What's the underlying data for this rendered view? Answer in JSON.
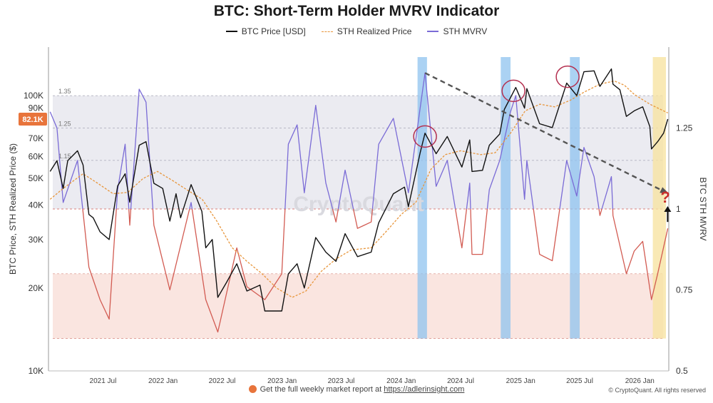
{
  "chart_data": {
    "type": "line",
    "title": "BTC: Short-Term Holder MVRV Indicator",
    "ylabel_left": "BTC Price, STH Realized Price ($)",
    "ylabel_right": "BTC STH MVRV",
    "y_scale_left": "log",
    "ylim_left": [
      10000,
      150000
    ],
    "ylim_right": [
      0.5,
      1.5
    ],
    "left_ticks": [
      {
        "value": 10000,
        "label": "10K"
      },
      {
        "value": 20000,
        "label": "20K"
      },
      {
        "value": 30000,
        "label": "30K"
      },
      {
        "value": 40000,
        "label": "40K"
      },
      {
        "value": 50000,
        "label": "50K"
      },
      {
        "value": 60000,
        "label": "60K"
      },
      {
        "value": 70000,
        "label": "70K"
      },
      {
        "value": 90000,
        "label": "90K"
      },
      {
        "value": 100000,
        "label": "100K"
      }
    ],
    "right_ticks": [
      {
        "value": 0.5,
        "label": "0.5"
      },
      {
        "value": 0.75,
        "label": "0.75"
      },
      {
        "value": 1.0,
        "label": "1"
      },
      {
        "value": 1.25,
        "label": "1.25"
      }
    ],
    "x_ticks": [
      {
        "date": "2021-07-01",
        "label": "2021 Jul"
      },
      {
        "date": "2022-01-01",
        "label": "2022 Jan"
      },
      {
        "date": "2022-07-01",
        "label": "2022 Jul"
      },
      {
        "date": "2023-01-01",
        "label": "2023 Jan"
      },
      {
        "date": "2023-07-01",
        "label": "2023 Jul"
      },
      {
        "date": "2024-01-01",
        "label": "2024 Jan"
      },
      {
        "date": "2024-07-01",
        "label": "2024 Jul"
      },
      {
        "date": "2025-01-01",
        "label": "2025 Jan"
      },
      {
        "date": "2025-07-01",
        "label": "2025 Jul"
      },
      {
        "date": "2026-01-01",
        "label": "2026 Jan"
      }
    ],
    "xlim": [
      "2021-01-15",
      "2026-03-31"
    ],
    "band_levels": [
      {
        "value": 1.35,
        "label": "1.35"
      },
      {
        "value": 1.25,
        "label": "1.25"
      },
      {
        "value": 1.15,
        "label": "1.15"
      }
    ],
    "current_price_label": "82.1K",
    "watermark": "CryptoQuant",
    "series": [
      {
        "name": "BTC Price [USD]",
        "color": "#111111",
        "points": [
          [
            "2021-01-20",
            53000
          ],
          [
            "2021-02-10",
            58000
          ],
          [
            "2021-03-01",
            46000
          ],
          [
            "2021-03-15",
            58000
          ],
          [
            "2021-04-14",
            63000
          ],
          [
            "2021-05-01",
            56000
          ],
          [
            "2021-05-19",
            37000
          ],
          [
            "2021-06-01",
            36000
          ],
          [
            "2021-06-22",
            32000
          ],
          [
            "2021-07-20",
            30000
          ],
          [
            "2021-08-15",
            47000
          ],
          [
            "2021-09-07",
            52000
          ],
          [
            "2021-09-21",
            41000
          ],
          [
            "2021-10-20",
            66000
          ],
          [
            "2021-11-10",
            68000
          ],
          [
            "2021-12-04",
            48000
          ],
          [
            "2021-12-31",
            46000
          ],
          [
            "2022-01-22",
            35000
          ],
          [
            "2022-02-10",
            44000
          ],
          [
            "2022-02-24",
            36000
          ],
          [
            "2022-03-28",
            47500
          ],
          [
            "2022-04-30",
            38000
          ],
          [
            "2022-05-12",
            28000
          ],
          [
            "2022-06-01",
            30000
          ],
          [
            "2022-06-18",
            18500
          ],
          [
            "2022-07-15",
            21000
          ],
          [
            "2022-08-15",
            24500
          ],
          [
            "2022-09-15",
            19500
          ],
          [
            "2022-10-25",
            20500
          ],
          [
            "2022-11-09",
            16500
          ],
          [
            "2022-12-31",
            16500
          ],
          [
            "2023-01-20",
            22500
          ],
          [
            "2023-02-16",
            24500
          ],
          [
            "2023-03-10",
            20000
          ],
          [
            "2023-04-14",
            30500
          ],
          [
            "2023-05-15",
            27000
          ],
          [
            "2023-06-15",
            25000
          ],
          [
            "2023-07-13",
            31500
          ],
          [
            "2023-08-20",
            26000
          ],
          [
            "2023-10-01",
            27000
          ],
          [
            "2023-10-24",
            34500
          ],
          [
            "2023-12-08",
            44000
          ],
          [
            "2024-01-11",
            46500
          ],
          [
            "2024-01-23",
            39500
          ],
          [
            "2024-02-28",
            62000
          ],
          [
            "2024-03-14",
            73000
          ],
          [
            "2024-04-17",
            61500
          ],
          [
            "2024-05-21",
            71000
          ],
          [
            "2024-07-05",
            55000
          ],
          [
            "2024-07-29",
            69000
          ],
          [
            "2024-08-05",
            53000
          ],
          [
            "2024-09-06",
            53500
          ],
          [
            "2024-09-27",
            66000
          ],
          [
            "2024-10-29",
            72500
          ],
          [
            "2024-11-12",
            89000
          ],
          [
            "2024-12-17",
            107000
          ],
          [
            "2025-01-13",
            90000
          ],
          [
            "2025-01-20",
            106000
          ],
          [
            "2025-02-28",
            79000
          ],
          [
            "2025-04-08",
            76500
          ],
          [
            "2025-05-22",
            111000
          ],
          [
            "2025-06-22",
            100000
          ],
          [
            "2025-07-14",
            122000
          ],
          [
            "2025-08-14",
            123000
          ],
          [
            "2025-09-01",
            108000
          ],
          [
            "2025-10-06",
            125000
          ],
          [
            "2025-10-11",
            110000
          ],
          [
            "2025-11-01",
            105000
          ],
          [
            "2025-11-21",
            84000
          ],
          [
            "2025-12-15",
            88000
          ],
          [
            "2026-01-10",
            91000
          ],
          [
            "2026-02-01",
            77000
          ],
          [
            "2026-02-06",
            64000
          ],
          [
            "2026-02-25",
            68000
          ],
          [
            "2026-03-15",
            73000
          ],
          [
            "2026-03-28",
            82100
          ]
        ]
      },
      {
        "name": "STH Realized Price",
        "color": "#e8963c",
        "dashed": true,
        "points": [
          [
            "2021-01-20",
            42000
          ],
          [
            "2021-03-01",
            46000
          ],
          [
            "2021-05-01",
            52000
          ],
          [
            "2021-06-15",
            48000
          ],
          [
            "2021-08-01",
            44000
          ],
          [
            "2021-09-15",
            44500
          ],
          [
            "2021-11-01",
            50000
          ],
          [
            "2021-12-15",
            53000
          ],
          [
            "2022-02-01",
            49000
          ],
          [
            "2022-03-15",
            45500
          ],
          [
            "2022-05-01",
            42000
          ],
          [
            "2022-06-15",
            35000
          ],
          [
            "2022-08-01",
            28000
          ],
          [
            "2022-09-15",
            25000
          ],
          [
            "2022-11-01",
            22500
          ],
          [
            "2022-12-15",
            20000
          ],
          [
            "2023-02-01",
            18500
          ],
          [
            "2023-03-15",
            19500
          ],
          [
            "2023-05-01",
            23000
          ],
          [
            "2023-06-15",
            25500
          ],
          [
            "2023-08-01",
            27500
          ],
          [
            "2023-10-01",
            28000
          ],
          [
            "2023-11-15",
            32000
          ],
          [
            "2024-01-01",
            37000
          ],
          [
            "2024-02-15",
            41000
          ],
          [
            "2024-04-01",
            54000
          ],
          [
            "2024-05-15",
            61000
          ],
          [
            "2024-07-01",
            63000
          ],
          [
            "2024-09-01",
            61000
          ],
          [
            "2024-10-15",
            62000
          ],
          [
            "2024-12-01",
            73000
          ],
          [
            "2025-01-15",
            88000
          ],
          [
            "2025-03-01",
            93000
          ],
          [
            "2025-04-15",
            91000
          ],
          [
            "2025-06-01",
            96000
          ],
          [
            "2025-07-15",
            103000
          ],
          [
            "2025-09-01",
            110000
          ],
          [
            "2025-10-15",
            113000
          ],
          [
            "2025-11-15",
            109000
          ],
          [
            "2025-12-15",
            101000
          ],
          [
            "2026-02-01",
            93000
          ],
          [
            "2026-03-28",
            86500
          ]
        ]
      },
      {
        "name": "STH MVRV",
        "color": "#7a6bd6",
        "color_below_one": "#d25b52",
        "points": [
          [
            "2021-01-20",
            1.3
          ],
          [
            "2021-02-10",
            1.25
          ],
          [
            "2021-03-01",
            1.02
          ],
          [
            "2021-04-14",
            1.15
          ],
          [
            "2021-05-19",
            0.82
          ],
          [
            "2021-06-22",
            0.72
          ],
          [
            "2021-07-20",
            0.66
          ],
          [
            "2021-08-15",
            1.06
          ],
          [
            "2021-09-07",
            1.2
          ],
          [
            "2021-09-21",
            0.95
          ],
          [
            "2021-10-20",
            1.37
          ],
          [
            "2021-11-10",
            1.33
          ],
          [
            "2021-12-04",
            0.95
          ],
          [
            "2022-01-22",
            0.75
          ],
          [
            "2022-03-28",
            1.02
          ],
          [
            "2022-05-12",
            0.72
          ],
          [
            "2022-06-18",
            0.62
          ],
          [
            "2022-08-15",
            0.88
          ],
          [
            "2022-09-15",
            0.76
          ],
          [
            "2022-11-09",
            0.72
          ],
          [
            "2022-12-31",
            0.8
          ],
          [
            "2023-01-20",
            1.2
          ],
          [
            "2023-02-16",
            1.26
          ],
          [
            "2023-03-10",
            1.05
          ],
          [
            "2023-04-14",
            1.32
          ],
          [
            "2023-05-15",
            1.08
          ],
          [
            "2023-06-15",
            0.96
          ],
          [
            "2023-07-13",
            1.12
          ],
          [
            "2023-08-20",
            0.94
          ],
          [
            "2023-10-01",
            0.96
          ],
          [
            "2023-10-24",
            1.2
          ],
          [
            "2023-12-08",
            1.28
          ],
          [
            "2024-01-23",
            1.05
          ],
          [
            "2024-03-14",
            1.42
          ],
          [
            "2024-04-17",
            1.07
          ],
          [
            "2024-05-21",
            1.15
          ],
          [
            "2024-07-05",
            0.88
          ],
          [
            "2024-07-29",
            1.08
          ],
          [
            "2024-08-05",
            0.86
          ],
          [
            "2024-09-06",
            0.86
          ],
          [
            "2024-09-27",
            1.06
          ],
          [
            "2024-10-29",
            1.15
          ],
          [
            "2024-12-01",
            1.3
          ],
          [
            "2024-12-17",
            1.35
          ],
          [
            "2025-01-13",
            1.03
          ],
          [
            "2025-01-20",
            1.15
          ],
          [
            "2025-02-28",
            0.86
          ],
          [
            "2025-04-08",
            0.84
          ],
          [
            "2025-05-22",
            1.15
          ],
          [
            "2025-06-22",
            1.04
          ],
          [
            "2025-07-14",
            1.19
          ],
          [
            "2025-08-14",
            1.1
          ],
          [
            "2025-09-01",
            0.98
          ],
          [
            "2025-10-06",
            1.1
          ],
          [
            "2025-10-11",
            0.98
          ],
          [
            "2025-11-21",
            0.8
          ],
          [
            "2025-12-15",
            0.87
          ],
          [
            "2026-01-10",
            0.9
          ],
          [
            "2026-02-06",
            0.72
          ],
          [
            "2026-02-25",
            0.8
          ],
          [
            "2026-03-28",
            0.94
          ]
        ]
      }
    ]
  },
  "footer": {
    "text_before": "Get the full weekly market report at ",
    "link": "https://adlerinsight.com"
  },
  "copyright": "© CryptoQuant. All rights reserved"
}
